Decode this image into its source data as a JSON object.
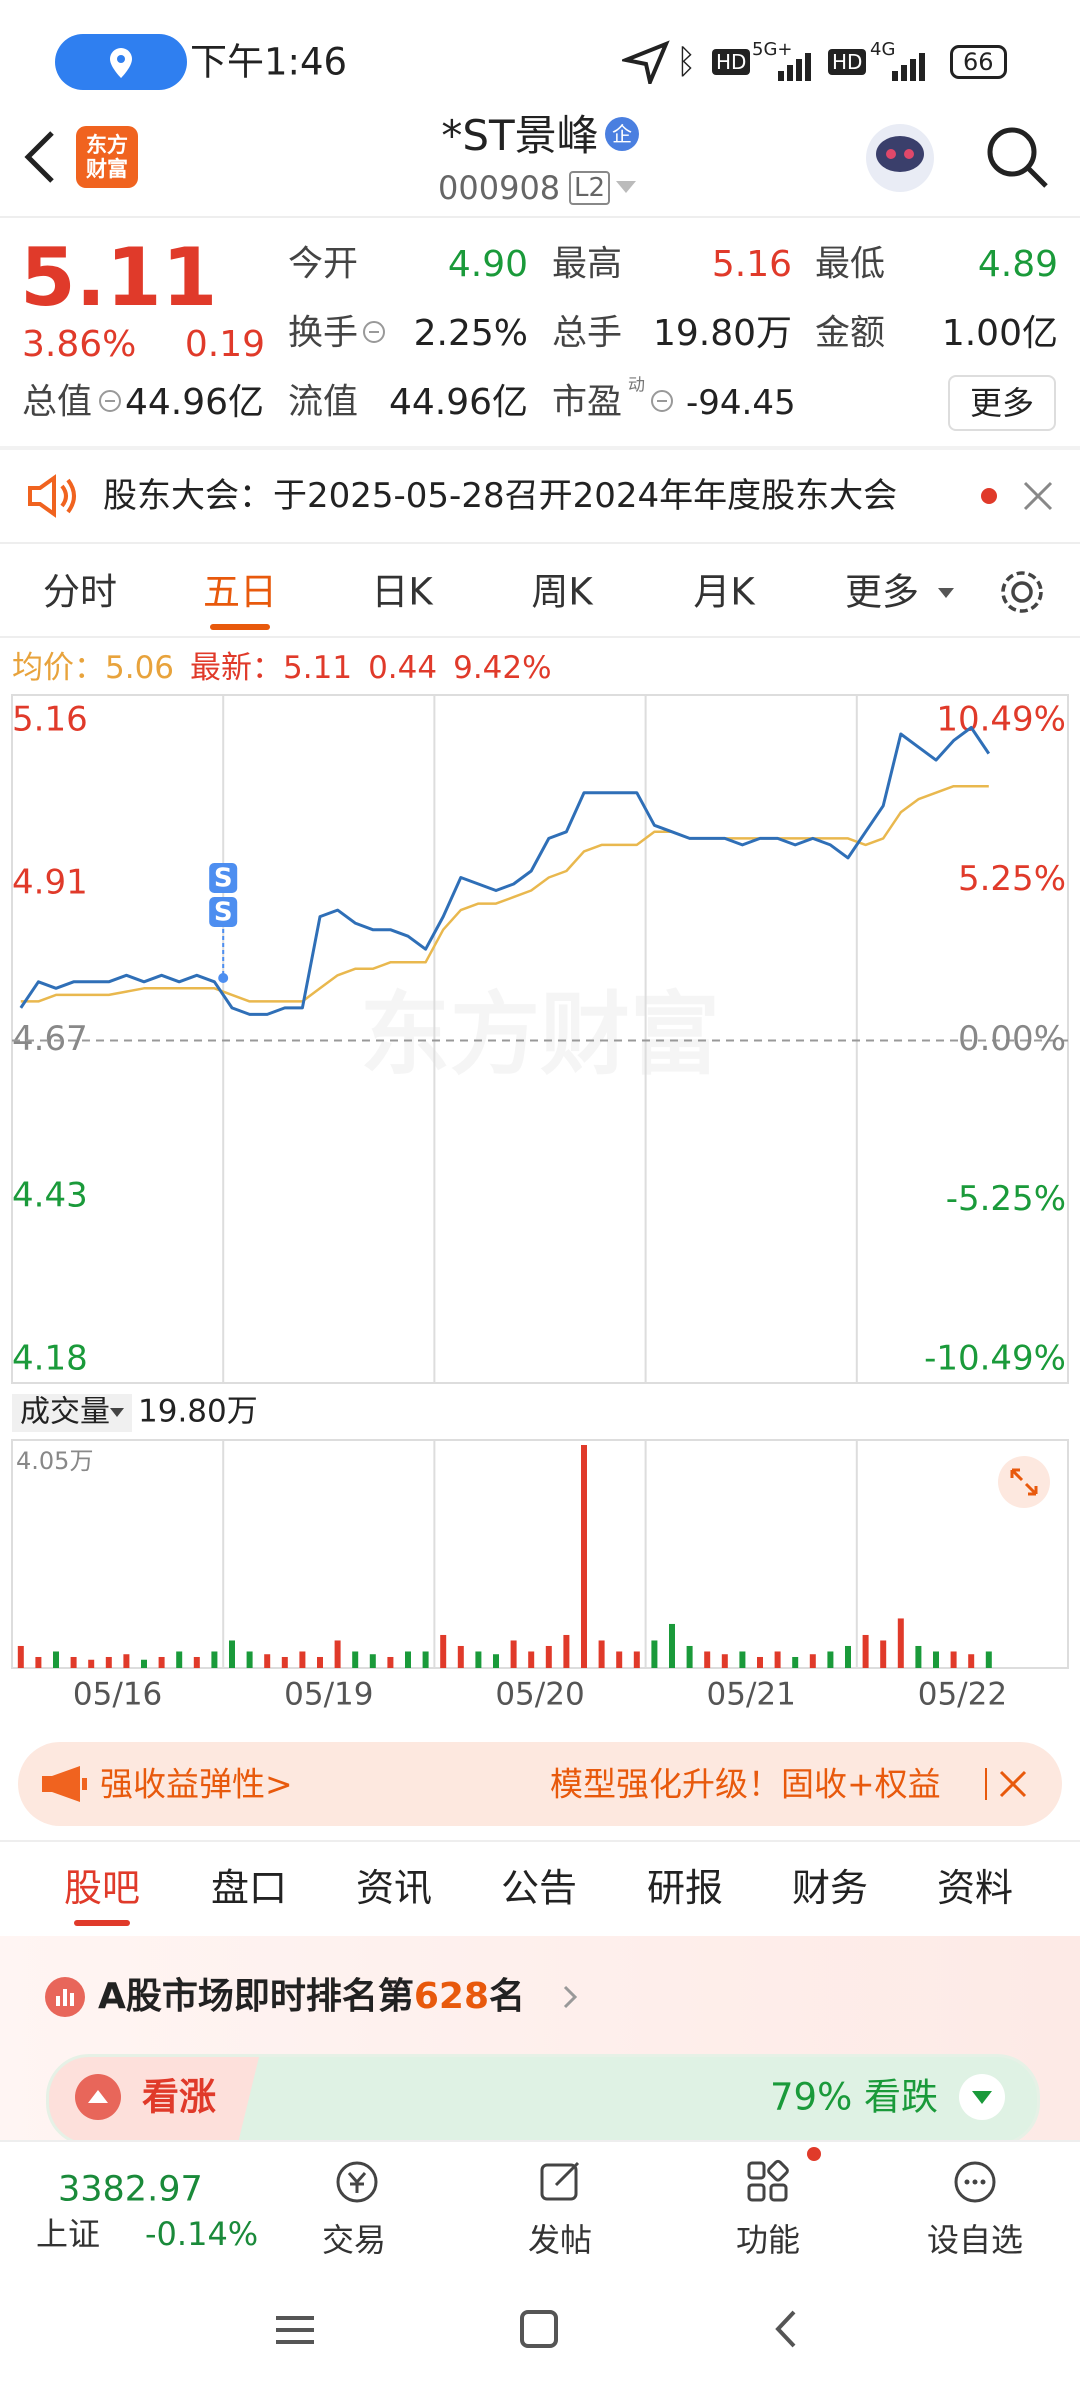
{
  "status_bar": {
    "time": "下午1:46",
    "net1": "5G+",
    "net2": "4G",
    "battery": "66"
  },
  "header": {
    "logo": [
      "东方",
      "财富"
    ],
    "title": "*ST景峰",
    "badge": "企",
    "code": "000908",
    "level": "L2"
  },
  "quote": {
    "price": "5.11",
    "pct": "3.86%",
    "change": "0.19",
    "open_label": "今开",
    "open": "4.90",
    "high_label": "最高",
    "high": "5.16",
    "low_label": "最低",
    "low": "4.89",
    "turnover_label": "换手",
    "turnover": "2.25%",
    "volume_label": "总手",
    "volume": "19.80万",
    "amount_label": "金额",
    "amount": "1.00亿",
    "mcap_label": "总值",
    "mcap": "44.96亿",
    "float_label": "流值",
    "float": "44.96亿",
    "pe_label": "市盈",
    "pe_sup": "动",
    "pe": "-94.45",
    "more": "更多"
  },
  "notice": "股东大会：于2025-05-28召开2024年年度股东大会",
  "tabs": [
    "分时",
    "五日",
    "日K",
    "周K",
    "月K",
    "更多"
  ],
  "chart_data": {
    "type": "line",
    "info": {
      "avg_label": "均价：",
      "avg": "5.06",
      "latest_label": "最新：",
      "latest": "5.11",
      "change": "0.44",
      "pct": "9.42%"
    },
    "categories": [
      "05/16",
      "05/19",
      "05/20",
      "05/21",
      "05/22"
    ],
    "ylim": [
      4.18,
      5.16
    ],
    "yticks": [
      5.16,
      4.91,
      4.67,
      4.43,
      4.18
    ],
    "y2lim": [
      -10.49,
      10.49
    ],
    "y2ticks": [
      {
        "value": 10.49,
        "label": "10.49%"
      },
      {
        "value": 5.25,
        "label": "5.25%"
      },
      {
        "value": 0,
        "label": "0.00%"
      },
      {
        "value": -5.25,
        "label": "-5.25%"
      },
      {
        "value": -10.49,
        "label": "-10.49%"
      }
    ],
    "watermark": "东方财富",
    "annotations": [
      "S",
      "S"
    ],
    "price": {
      "color": "#2f6fb7",
      "values": [
        4.72,
        4.76,
        4.75,
        4.76,
        4.76,
        4.76,
        4.77,
        4.76,
        4.77,
        4.76,
        4.77,
        4.76,
        4.72,
        4.71,
        4.71,
        4.72,
        4.72,
        4.86,
        4.87,
        4.85,
        4.84,
        4.84,
        4.83,
        4.81,
        4.86,
        4.92,
        4.91,
        4.9,
        4.91,
        4.93,
        4.98,
        4.99,
        5.05,
        5.05,
        5.05,
        5.05,
        5.0,
        4.99,
        4.98,
        4.98,
        4.98,
        4.97,
        4.98,
        4.98,
        4.97,
        4.98,
        4.97,
        4.95,
        4.99,
        5.03,
        5.14,
        5.12,
        5.1,
        5.13,
        5.15,
        5.11,
        null,
        null,
        null,
        null
      ]
    },
    "average": {
      "color": "#e9b84e",
      "values": [
        4.73,
        4.73,
        4.74,
        4.74,
        4.74,
        4.74,
        4.745,
        4.75,
        4.75,
        4.75,
        4.75,
        4.75,
        4.74,
        4.73,
        4.73,
        4.73,
        4.73,
        4.75,
        4.77,
        4.78,
        4.78,
        4.79,
        4.79,
        4.79,
        4.84,
        4.87,
        4.88,
        4.88,
        4.89,
        4.9,
        4.92,
        4.93,
        4.96,
        4.97,
        4.97,
        4.97,
        4.99,
        4.99,
        4.98,
        4.98,
        4.98,
        4.98,
        4.98,
        4.98,
        4.98,
        4.98,
        4.98,
        4.98,
        4.97,
        4.98,
        5.02,
        5.04,
        5.05,
        5.06,
        5.06,
        5.06,
        null,
        null,
        null,
        null
      ]
    },
    "volume": {
      "label": "成交量",
      "total": "19.80万",
      "ylim": [
        0,
        4.05
      ],
      "yticks": [
        {
          "value": 4.05,
          "label": "4.05万"
        }
      ],
      "up_color": "#e03a2a",
      "down_color": "#1a9a3a",
      "values": [
        0.4,
        0.2,
        0.3,
        0.2,
        0.15,
        0.2,
        0.25,
        0.15,
        0.2,
        0.3,
        0.2,
        0.3,
        0.5,
        0.3,
        0.25,
        0.2,
        0.3,
        0.2,
        0.5,
        0.3,
        0.25,
        0.2,
        0.3,
        0.3,
        0.6,
        0.4,
        0.3,
        0.25,
        0.5,
        0.3,
        0.4,
        0.6,
        4.05,
        0.5,
        0.3,
        0.3,
        0.5,
        0.8,
        0.4,
        0.3,
        0.25,
        0.3,
        0.2,
        0.3,
        0.2,
        0.25,
        0.3,
        0.4,
        0.6,
        0.5,
        0.9,
        0.4,
        0.3,
        0.3,
        0.25,
        0.3,
        null,
        null,
        null,
        null
      ]
    }
  },
  "banner": {
    "left": "强收益弹性>",
    "right": "模型强化升级！固收+权益"
  },
  "section_tabs": [
    "股吧",
    "盘口",
    "资讯",
    "公告",
    "研报",
    "财务",
    "资料"
  ],
  "ranking": {
    "prefix": "A股市场即时排名第",
    "rank": "628",
    "suffix": "名"
  },
  "sentiment": {
    "bull": "看涨",
    "bear_pct": "79%",
    "bear": "看跌"
  },
  "bottom_nav": {
    "index_value": "3382.97",
    "index_name": "上证",
    "index_change": "-0.14%",
    "items": [
      "交易",
      "发帖",
      "功能",
      "设自选"
    ]
  }
}
